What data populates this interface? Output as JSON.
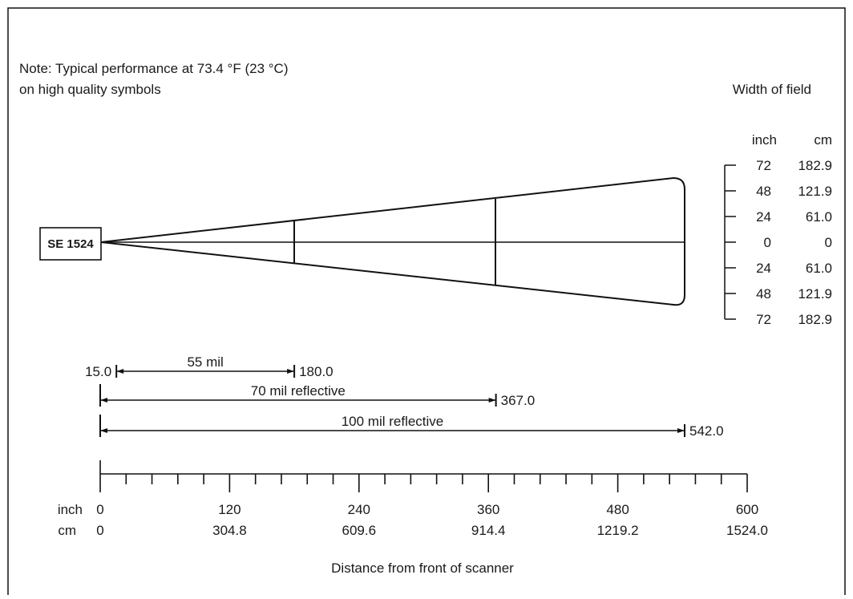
{
  "note": {
    "line1": "Note: Typical performance at 73.4 °F (23 °C)",
    "line2": "on high quality symbols"
  },
  "scanner_label": "SE 1524",
  "width_of_field": {
    "title": "Width of field",
    "unit_inch": "inch",
    "unit_cm": "cm",
    "rows": [
      {
        "inch": "72",
        "cm": "182.9"
      },
      {
        "inch": "48",
        "cm": "121.9"
      },
      {
        "inch": "24",
        "cm": "61.0"
      },
      {
        "inch": "0",
        "cm": "0"
      },
      {
        "inch": "24",
        "cm": "61.0"
      },
      {
        "inch": "48",
        "cm": "121.9"
      },
      {
        "inch": "72",
        "cm": "182.9"
      }
    ]
  },
  "ranges": [
    {
      "label": "55 mil",
      "start": 15.0,
      "end": 180.0,
      "start_label": "15.0",
      "end_label": "180.0"
    },
    {
      "label": "70 mil reflective",
      "start": 0,
      "end": 367.0,
      "end_label": "367.0"
    },
    {
      "label": "100 mil reflective",
      "start": 0,
      "end": 542.0,
      "end_label": "542.0"
    }
  ],
  "axis": {
    "unit_inch": "inch",
    "unit_cm": "cm",
    "title": "Distance from front of scanner",
    "min": 0,
    "max": 600,
    "minor_step": 24,
    "ticks": [
      {
        "inch": "0",
        "cm": "0"
      },
      {
        "inch": "120",
        "cm": "304.8"
      },
      {
        "inch": "240",
        "cm": "609.6"
      },
      {
        "inch": "360",
        "cm": "914.4"
      },
      {
        "inch": "480",
        "cm": "1219.2"
      },
      {
        "inch": "600",
        "cm": "1524.0"
      }
    ]
  }
}
